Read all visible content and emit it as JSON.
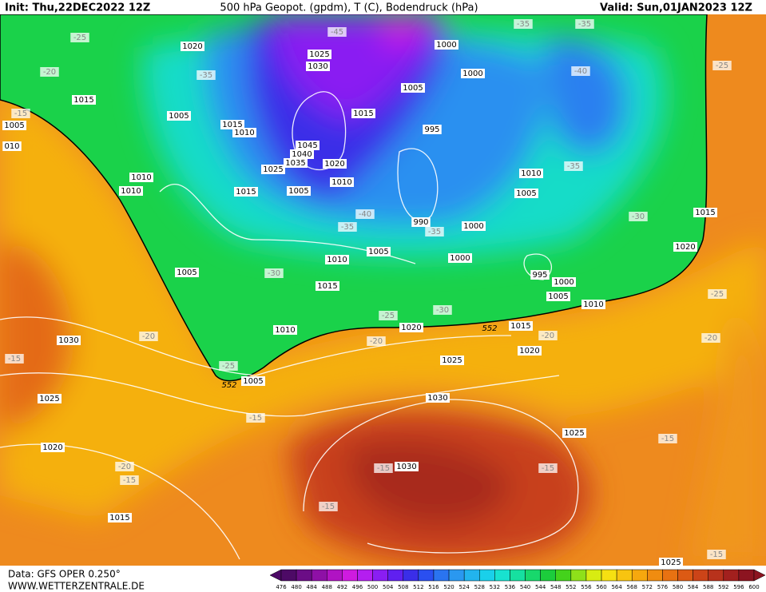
{
  "header": {
    "init": "Init: Thu,22DEC2022 12Z",
    "title": "500 hPa Geopot. (gpdm), T (C), Bodendruck (hPa)",
    "valid": "Valid: Sun,01JAN2023 12Z"
  },
  "footer": {
    "data": "Data: GFS OPER 0.250°",
    "site": "WWW.WETTERZENTRALE.DE"
  },
  "map": {
    "pressure_labels": [
      "1020",
      "1015",
      "1005",
      "1015",
      "1010",
      "1005",
      "010",
      "1010",
      "1010",
      "1015",
      "1005",
      "1025",
      "1045",
      "1040",
      "1035",
      "1020",
      "1010",
      "1025",
      "1030",
      "1015",
      "1005",
      "1000",
      "1000",
      "995",
      "990",
      "1000",
      "1000",
      "1010",
      "1005",
      "1015",
      "1020",
      "995",
      "1000",
      "1005",
      "1010",
      "1005",
      "1010",
      "1005",
      "1015",
      "1010",
      "1020",
      "1015",
      "1020",
      "1025",
      "1030",
      "1025",
      "1020",
      "1015",
      "1005",
      "1030",
      "1025",
      "1030",
      "1025"
    ],
    "temperature_labels": [
      "-25",
      "-45",
      "-35",
      "-35",
      "-20",
      "-35",
      "-40",
      "-25",
      "-15",
      "-35",
      "-40",
      "-35",
      "-35",
      "-30",
      "-30",
      "-25",
      "-30",
      "-20",
      "-20",
      "-20",
      "-20",
      "-25",
      "-15",
      "-25",
      "-15",
      "-15",
      "-20",
      "-15",
      "-15",
      "-15",
      "-15",
      "-15"
    ],
    "contour_labels": [
      "552",
      "552"
    ]
  },
  "color_scale": {
    "ticks": [
      476,
      480,
      484,
      488,
      492,
      496,
      500,
      504,
      508,
      512,
      516,
      520,
      524,
      528,
      532,
      536,
      540,
      544,
      548,
      552,
      556,
      560,
      564,
      568,
      572,
      576,
      580,
      584,
      588,
      592,
      596,
      600
    ],
    "colors": [
      "#4d0a66",
      "#6b0d86",
      "#8e10a6",
      "#b013c3",
      "#cf1be0",
      "#b41ef0",
      "#8a1ef2",
      "#6020f0",
      "#3a2ee8",
      "#2a4ff0",
      "#2a74f0",
      "#2a98f0",
      "#22b4ee",
      "#1ad0ea",
      "#18e2d0",
      "#16e0a0",
      "#18d86c",
      "#1ccc3c",
      "#44d21c",
      "#8ee01a",
      "#d8ec12",
      "#f6e012",
      "#f8c410",
      "#f6a80e",
      "#f08c10",
      "#e87212",
      "#dc5a14",
      "#cc4418",
      "#b8321c",
      "#a2201e",
      "#8c1420"
    ]
  }
}
